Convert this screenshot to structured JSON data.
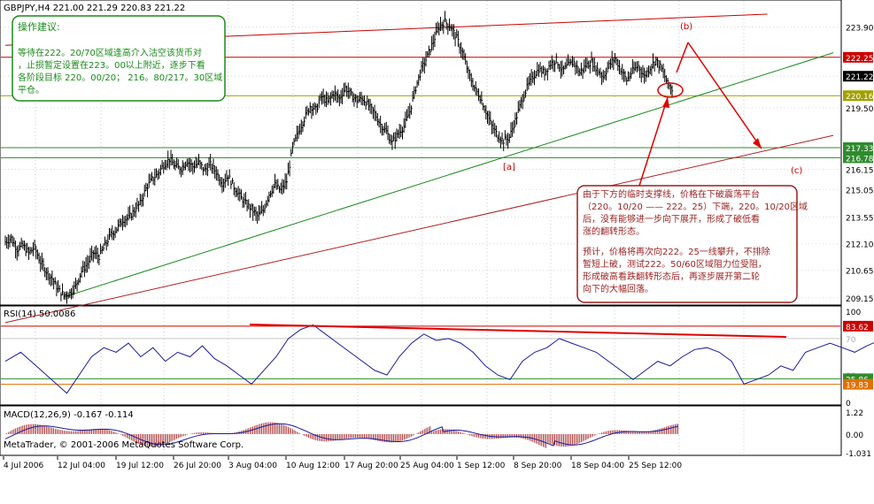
{
  "header": {
    "symbol_title": "GBPJPY,H4  221.00 221.29 220.83 221.22",
    "copyright": "MetaTrader, © 2001-2006 MetaQuotes Software Corp."
  },
  "colors": {
    "price_line": "#000000",
    "upper_channel": "#cc0000",
    "lower_channel": "#b02020",
    "support_line": "#1a8a1a",
    "horizontal_green": "#2e8b2e",
    "horizontal_olive": "#a0a000",
    "annotation_red": "#cc0000",
    "box_green_border": "#1a8a1a",
    "box_red_border": "#9a1f1f",
    "rsi_line": "#1a1aa0",
    "macd_hist": "#a52a2a",
    "macd_signal": "#1a1aa0"
  },
  "annotations": {
    "advice_title": "操作建议:",
    "advice_body": [
      "等待在222。20/70区域逢高介入沽空该货币对",
      "，止损暂定设置在223。00以上附近，逐步下看",
      "各阶段目标 220。00/20； 216。80/217。30区域",
      "平仓。"
    ],
    "analysis_p1": [
      "由于下方的临时支撑线，价格在下破震荡平台",
      "（220。10/20 —— 222。25）下端，220。10/20区域",
      "后，没有能够进一步向下展开，形成了破低看",
      "涨的翻转形态。"
    ],
    "analysis_p2": [
      "预计，价格将再次向222。25一线攀升，不排除",
      "暂短上破，测试222。50/60区域阻力位受阻，",
      "形成破高看跌翻转形态后，再逐步展开第二轮",
      "向下的大幅回落。"
    ],
    "wave_a": "[a]",
    "wave_b": "(b)",
    "wave_c": "(c)"
  },
  "chart_data": [
    {
      "type": "candlestick",
      "title": "GBPJPY,H4",
      "ohlc_last": {
        "open": 221.0,
        "high": 221.29,
        "low": 220.83,
        "close": 221.22
      },
      "x_tick_labels": [
        "4 Jul 2006",
        "12 Jul 04:00",
        "19 Jul 12:00",
        "26 Jul 20:00",
        "3 Aug 04:00",
        "10 Aug 12:00",
        "17 Aug 20:00",
        "25 Aug 04:00",
        "1 Sep 12:00",
        "8 Sep 20:00",
        "18 Sep 04:00",
        "25 Sep 12:00"
      ],
      "y_tick_labels": [
        "223.90",
        "222.25",
        "221.22",
        "220.16",
        "219.50",
        "217.33",
        "216.78",
        "216.15",
        "215.05",
        "213.55",
        "212.10",
        "210.65",
        "209.15"
      ],
      "ylim": [
        209.0,
        224.6
      ],
      "price_path": [
        [
          0,
          212.2
        ],
        [
          4,
          212.4
        ],
        [
          8,
          211.8
        ],
        [
          12,
          212.0
        ],
        [
          16,
          211.6
        ],
        [
          20,
          211.9
        ],
        [
          24,
          211.1
        ],
        [
          28,
          210.6
        ],
        [
          32,
          210.2
        ],
        [
          36,
          209.6
        ],
        [
          40,
          209.3
        ],
        [
          44,
          209.4
        ],
        [
          48,
          209.8
        ],
        [
          52,
          210.6
        ],
        [
          56,
          211.0
        ],
        [
          60,
          211.6
        ],
        [
          64,
          211.4
        ],
        [
          68,
          212.0
        ],
        [
          72,
          212.6
        ],
        [
          76,
          212.9
        ],
        [
          80,
          213.4
        ],
        [
          84,
          213.5
        ],
        [
          88,
          213.9
        ],
        [
          92,
          214.3
        ],
        [
          96,
          215.1
        ],
        [
          100,
          215.6
        ],
        [
          104,
          215.9
        ],
        [
          108,
          216.4
        ],
        [
          112,
          216.7
        ],
        [
          116,
          216.3
        ],
        [
          120,
          216.2
        ],
        [
          124,
          216.6
        ],
        [
          128,
          216.3
        ],
        [
          132,
          216.5
        ],
        [
          136,
          216.1
        ],
        [
          140,
          216.4
        ],
        [
          144,
          216.0
        ],
        [
          148,
          215.4
        ],
        [
          152,
          215.8
        ],
        [
          156,
          215.2
        ],
        [
          160,
          214.7
        ],
        [
          164,
          214.3
        ],
        [
          168,
          214.0
        ],
        [
          172,
          213.6
        ],
        [
          176,
          213.9
        ],
        [
          180,
          214.8
        ],
        [
          184,
          215.3
        ],
        [
          188,
          215.0
        ],
        [
          192,
          215.5
        ],
        [
          196,
          217.3
        ],
        [
          200,
          218.2
        ],
        [
          204,
          218.9
        ],
        [
          208,
          219.6
        ],
        [
          212,
          219.4
        ],
        [
          216,
          220.1
        ],
        [
          220,
          219.8
        ],
        [
          224,
          220.3
        ],
        [
          228,
          220.0
        ],
        [
          232,
          220.6
        ],
        [
          236,
          220.2
        ],
        [
          240,
          219.9
        ],
        [
          244,
          220.0
        ],
        [
          248,
          219.6
        ],
        [
          252,
          219.2
        ],
        [
          256,
          218.6
        ],
        [
          260,
          218.2
        ],
        [
          264,
          217.6
        ],
        [
          268,
          218.1
        ],
        [
          272,
          218.5
        ],
        [
          276,
          219.3
        ],
        [
          280,
          220.6
        ],
        [
          284,
          221.6
        ],
        [
          288,
          222.3
        ],
        [
          292,
          223.1
        ],
        [
          296,
          223.9
        ],
        [
          300,
          224.2
        ],
        [
          304,
          223.9
        ],
        [
          308,
          223.3
        ],
        [
          312,
          222.5
        ],
        [
          316,
          221.4
        ],
        [
          320,
          220.6
        ],
        [
          324,
          220.1
        ],
        [
          328,
          219.3
        ],
        [
          332,
          218.5
        ],
        [
          336,
          218.0
        ],
        [
          340,
          217.7
        ],
        [
          344,
          217.9
        ],
        [
          348,
          218.8
        ],
        [
          352,
          219.8
        ],
        [
          356,
          220.6
        ],
        [
          360,
          221.2
        ],
        [
          364,
          221.6
        ],
        [
          368,
          221.4
        ],
        [
          372,
          221.9
        ],
        [
          376,
          222.1
        ],
        [
          380,
          221.5
        ],
        [
          384,
          221.8
        ],
        [
          388,
          222.0
        ],
        [
          392,
          221.4
        ],
        [
          396,
          221.8
        ],
        [
          400,
          222.0
        ],
        [
          404,
          221.6
        ],
        [
          408,
          221.2
        ],
        [
          412,
          221.8
        ],
        [
          416,
          222.2
        ],
        [
          420,
          221.6
        ],
        [
          424,
          221.0
        ],
        [
          428,
          221.5
        ],
        [
          432,
          221.8
        ],
        [
          436,
          221.2
        ],
        [
          440,
          221.7
        ],
        [
          444,
          222.1
        ],
        [
          448,
          221.6
        ],
        [
          452,
          220.8
        ],
        [
          456,
          220.4
        ],
        [
          460,
          220.9
        ],
        [
          464,
          221.2
        ]
      ],
      "horizontal_levels": [
        222.25,
        220.16,
        217.33,
        216.78
      ],
      "trendlines": [
        {
          "name": "upper-channel",
          "from": [
            0,
            222.9
          ],
          "to": [
            520,
            224.6
          ]
        },
        {
          "name": "support-line",
          "from": [
            40,
            209.2
          ],
          "to": [
            565,
            222.5
          ]
        },
        {
          "name": "lower-channel",
          "from": [
            0,
            207.8
          ],
          "to": [
            565,
            218.0
          ]
        }
      ]
    },
    {
      "type": "line",
      "title": "RSI(14) 50.0086",
      "y_tick_labels": [
        "100",
        "83.62",
        "70",
        "30",
        "25.86",
        "19.83",
        "0"
      ],
      "ylim": [
        0,
        100
      ],
      "levels": [
        83.62,
        70,
        25.86,
        19.83
      ],
      "path": [
        [
          0,
          45
        ],
        [
          5,
          55
        ],
        [
          10,
          40
        ],
        [
          15,
          25
        ],
        [
          20,
          10
        ],
        [
          24,
          30
        ],
        [
          28,
          50
        ],
        [
          32,
          60
        ],
        [
          36,
          55
        ],
        [
          40,
          65
        ],
        [
          44,
          50
        ],
        [
          48,
          60
        ],
        [
          52,
          45
        ],
        [
          56,
          55
        ],
        [
          60,
          50
        ],
        [
          64,
          62
        ],
        [
          68,
          48
        ],
        [
          72,
          40
        ],
        [
          76,
          30
        ],
        [
          80,
          20
        ],
        [
          84,
          35
        ],
        [
          88,
          50
        ],
        [
          92,
          70
        ],
        [
          96,
          80
        ],
        [
          100,
          85
        ],
        [
          104,
          75
        ],
        [
          108,
          65
        ],
        [
          112,
          55
        ],
        [
          116,
          45
        ],
        [
          120,
          35
        ],
        [
          124,
          30
        ],
        [
          128,
          50
        ],
        [
          132,
          65
        ],
        [
          136,
          75
        ],
        [
          140,
          68
        ],
        [
          144,
          70
        ],
        [
          148,
          65
        ],
        [
          152,
          55
        ],
        [
          156,
          40
        ],
        [
          160,
          30
        ],
        [
          164,
          25
        ],
        [
          168,
          45
        ],
        [
          172,
          55
        ],
        [
          176,
          60
        ],
        [
          180,
          70
        ],
        [
          184,
          65
        ],
        [
          188,
          60
        ],
        [
          192,
          55
        ],
        [
          196,
          45
        ],
        [
          200,
          35
        ],
        [
          204,
          25
        ],
        [
          208,
          35
        ],
        [
          212,
          45
        ],
        [
          216,
          40
        ],
        [
          220,
          50
        ],
        [
          224,
          58
        ],
        [
          228,
          60
        ],
        [
          232,
          55
        ],
        [
          236,
          45
        ],
        [
          240,
          20
        ],
        [
          244,
          25
        ],
        [
          248,
          30
        ],
        [
          252,
          40
        ],
        [
          256,
          35
        ],
        [
          260,
          55
        ],
        [
          264,
          60
        ],
        [
          268,
          65
        ],
        [
          272,
          60
        ],
        [
          276,
          55
        ],
        [
          280,
          62
        ],
        [
          284,
          68
        ],
        [
          288,
          60
        ],
        [
          292,
          65
        ],
        [
          296,
          50
        ],
        [
          300,
          40
        ],
        [
          304,
          30
        ],
        [
          308,
          25
        ],
        [
          312,
          35
        ],
        [
          316,
          45
        ],
        [
          320,
          40
        ],
        [
          324,
          50
        ],
        [
          328,
          60
        ],
        [
          332,
          55
        ],
        [
          336,
          48
        ],
        [
          340,
          40
        ],
        [
          344,
          45
        ],
        [
          348,
          50
        ],
        [
          352,
          35
        ],
        [
          356,
          40
        ],
        [
          360,
          52
        ],
        [
          364,
          50
        ]
      ]
    },
    {
      "type": "bar",
      "title": "MACD(12,26,9) -0.167 -0.114",
      "y_tick_labels": [
        "1.22",
        "0.00",
        "-1.031"
      ],
      "ylim": [
        -1.031,
        1.22
      ]
    }
  ]
}
